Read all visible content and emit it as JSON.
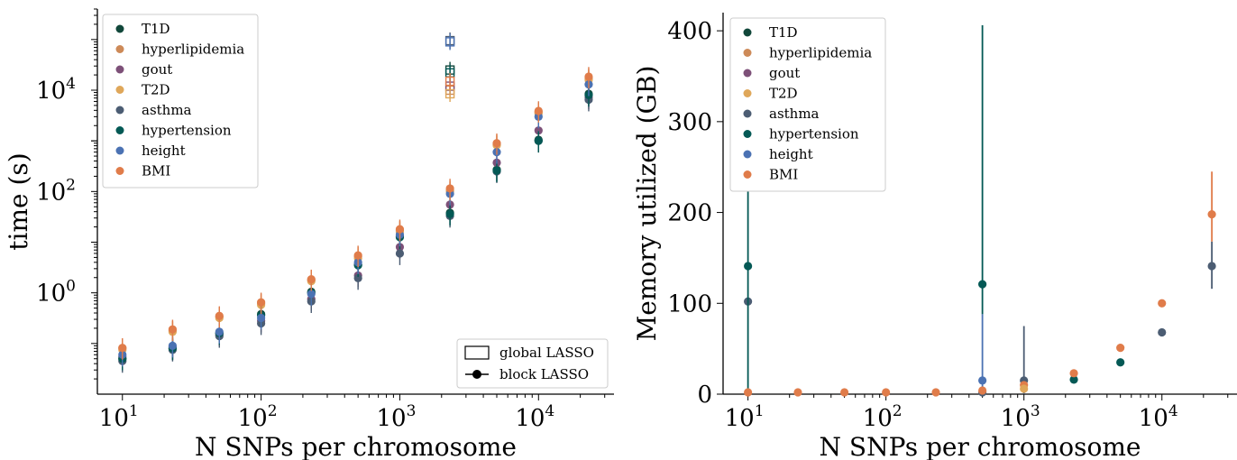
{
  "colors": {
    "T1D": "#11473a",
    "hyperlipidemia": "#cd8a58",
    "gout": "#7d5078",
    "T2D": "#dfa75a",
    "asthma": "#4c5d73",
    "hypertension": "#045955",
    "height": "#4b72b3",
    "BMI": "#e07c4a"
  },
  "chart_data": [
    {
      "type": "scatter",
      "xlabel": "N SNPs per chromosome",
      "ylabel": "time (s)",
      "xscale": "log",
      "yscale": "log",
      "xlim": [
        6.6,
        35000
      ],
      "ylim": [
        0.01,
        400000
      ],
      "xticks": [
        {
          "base": "10",
          "exp": "1",
          "value": 10
        },
        {
          "base": "10",
          "exp": "2",
          "value": 100
        },
        {
          "base": "10",
          "exp": "3",
          "value": 1000
        },
        {
          "base": "10",
          "exp": "4",
          "value": 10000
        }
      ],
      "yticks": [
        {
          "base": "10",
          "exp": "0",
          "value": 1
        },
        {
          "base": "10",
          "exp": "2",
          "value": 100
        },
        {
          "base": "10",
          "exp": "4",
          "value": 10000
        }
      ],
      "legend_position": "top-left",
      "legend": [
        "T1D",
        "hyperlipidemia",
        "gout",
        "T2D",
        "asthma",
        "hypertension",
        "height",
        "BMI"
      ],
      "style_legend": {
        "position": "bottom-right",
        "items": [
          "global LASSO",
          "block LASSO"
        ]
      },
      "series": [
        {
          "name": "T1D",
          "x": [
            10,
            23,
            50,
            100,
            230,
            500,
            1000,
            2300,
            5000,
            10000,
            23000
          ],
          "y": [
            0.05,
            0.08,
            0.16,
            0.38,
            1.05,
            3.6,
            13,
            38,
            270,
            1050,
            8500
          ]
        },
        {
          "name": "hyperlipidemia",
          "x": [
            10,
            23,
            50,
            100,
            230,
            500,
            1000,
            2300,
            5000,
            10000,
            23000
          ],
          "y": [
            0.08,
            0.18,
            0.34,
            0.62,
            1.8,
            5.2,
            17,
            105,
            850,
            3700,
            17000
          ]
        },
        {
          "name": "gout",
          "x": [
            10,
            23,
            50,
            100,
            230,
            500,
            1000,
            2300,
            5000,
            10000,
            23000
          ],
          "y": [
            0.055,
            0.085,
            0.15,
            0.28,
            0.75,
            2.2,
            8,
            55,
            370,
            1600,
            7200
          ]
        },
        {
          "name": "T2D",
          "x": [
            10,
            23,
            50,
            100,
            230,
            500,
            1000,
            2300,
            5000,
            10000,
            23000
          ],
          "y": [
            0.075,
            0.17,
            0.32,
            0.58,
            1.7,
            4.8,
            16,
            100,
            820,
            3500,
            16000
          ]
        },
        {
          "name": "asthma",
          "x": [
            10,
            23,
            50,
            100,
            230,
            500,
            1000,
            2300,
            5000,
            10000,
            23000
          ],
          "y": [
            0.045,
            0.075,
            0.14,
            0.25,
            0.68,
            1.95,
            6,
            33,
            250,
            1000,
            6500
          ]
        },
        {
          "name": "hypertension",
          "x": [
            10,
            23,
            50,
            100,
            230,
            500,
            1000,
            2300,
            5000,
            10000,
            23000
          ],
          "y": [
            0.05,
            0.08,
            0.16,
            0.36,
            1.0,
            3.5,
            12.5,
            36,
            260,
            1000,
            8000
          ]
        },
        {
          "name": "height",
          "x": [
            10,
            23,
            50,
            100,
            230,
            500,
            1000,
            2300,
            5000,
            10000,
            23000
          ],
          "y": [
            0.06,
            0.09,
            0.17,
            0.32,
            0.95,
            4.0,
            14,
            90,
            600,
            3000,
            13000
          ]
        },
        {
          "name": "BMI",
          "x": [
            10,
            23,
            50,
            100,
            230,
            500,
            1000,
            2300,
            5000,
            10000,
            23000
          ],
          "y": [
            0.082,
            0.19,
            0.35,
            0.65,
            1.85,
            5.5,
            18,
            115,
            900,
            3900,
            18500
          ]
        }
      ],
      "global_lasso": {
        "x": 2300,
        "y": {
          "T1D": 25000,
          "hyperlipidemia": 10000,
          "gout": 12000,
          "T2D": 8500,
          "asthma": 95000,
          "hypertension": 22000,
          "height": 90000,
          "BMI": 15000
        }
      }
    },
    {
      "type": "scatter",
      "xlabel": "N SNPs per chromosome",
      "ylabel": "Memory utilized (GB)",
      "xscale": "log",
      "yscale": "linear",
      "xlim": [
        6.6,
        35000
      ],
      "ylim": [
        0,
        420
      ],
      "xticks": [
        {
          "base": "10",
          "exp": "1",
          "value": 10
        },
        {
          "base": "10",
          "exp": "2",
          "value": 100
        },
        {
          "base": "10",
          "exp": "3",
          "value": 1000
        },
        {
          "base": "10",
          "exp": "4",
          "value": 10000
        }
      ],
      "yticks": [
        {
          "label": "0",
          "value": 0
        },
        {
          "label": "100",
          "value": 100
        },
        {
          "label": "200",
          "value": 200
        },
        {
          "label": "300",
          "value": 300
        },
        {
          "label": "400",
          "value": 400
        }
      ],
      "legend_position": "top-left",
      "legend": [
        "T1D",
        "hyperlipidemia",
        "gout",
        "T2D",
        "asthma",
        "hypertension",
        "height",
        "BMI"
      ],
      "points": [
        {
          "series": "asthma",
          "x": 10,
          "y": 102
        },
        {
          "series": "hypertension",
          "x": 10,
          "y": 141,
          "err": [
            0,
            420
          ]
        },
        {
          "series": "BMI",
          "x": 10,
          "y": 1
        },
        {
          "series": "BMI",
          "x": 23,
          "y": 1
        },
        {
          "series": "BMI",
          "x": 50,
          "y": 1
        },
        {
          "series": "BMI",
          "x": 100,
          "y": 1
        },
        {
          "series": "BMI",
          "x": 230,
          "y": 1
        },
        {
          "series": "hypertension",
          "x": 500,
          "y": 121,
          "err": [
            88,
            420
          ]
        },
        {
          "series": "height",
          "x": 500,
          "y": 15,
          "err": [
            0,
            88
          ]
        },
        {
          "series": "asthma",
          "x": 500,
          "y": 0
        },
        {
          "series": "BMI",
          "x": 500,
          "y": 4
        },
        {
          "series": "asthma",
          "x": 1000,
          "y": 15,
          "err": [
            0,
            75
          ]
        },
        {
          "series": "BMI",
          "x": 1000,
          "y": 10
        },
        {
          "series": "T2D",
          "x": 1000,
          "y": 6
        },
        {
          "series": "hypertension",
          "x": 2300,
          "y": 16
        },
        {
          "series": "BMI",
          "x": 2300,
          "y": 23
        },
        {
          "series": "hypertension",
          "x": 5000,
          "y": 35
        },
        {
          "series": "BMI",
          "x": 5000,
          "y": 51
        },
        {
          "series": "asthma",
          "x": 10000,
          "y": 68
        },
        {
          "series": "BMI",
          "x": 10000,
          "y": 100
        },
        {
          "series": "asthma",
          "x": 23000,
          "y": 141,
          "err": [
            116,
            168
          ]
        },
        {
          "series": "BMI",
          "x": 23000,
          "y": 198,
          "err": [
            168,
            245
          ]
        }
      ]
    }
  ]
}
